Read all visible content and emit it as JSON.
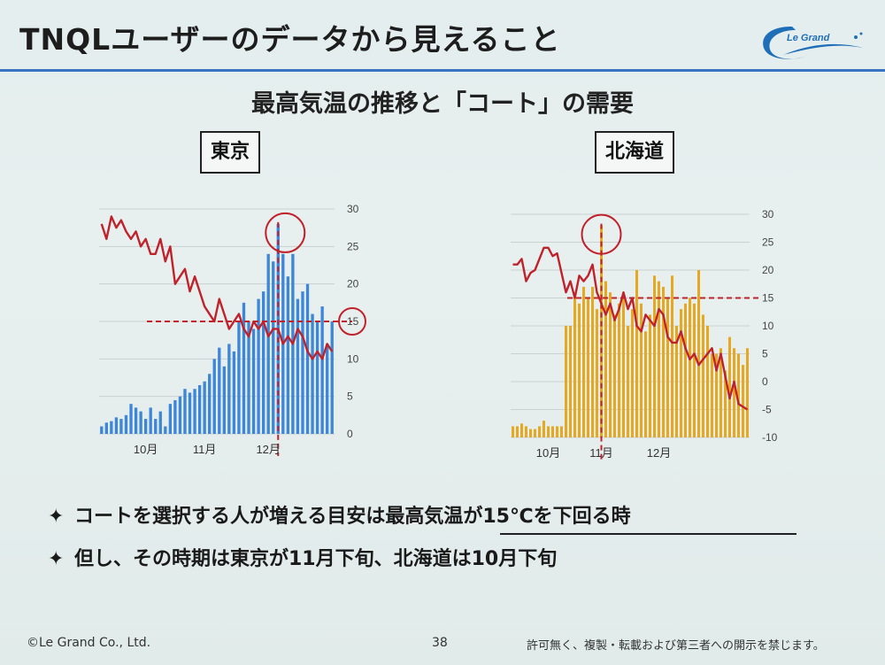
{
  "slide": {
    "title": "TNQLユーザーのデータから見えること",
    "subtitle": "最高気温の推移と「コート」の需要",
    "logo_text": "Le Grand",
    "colors": {
      "accent": "#3c74c4",
      "temp_line": "#c0222c",
      "tokyo_bar": "#3d86d8",
      "hokkaido_bar": "#e6a820"
    },
    "notes": [
      {
        "bullet": "✦",
        "text": "コートを選択する人が増える目安は最高気温が15℃を下回る時"
      },
      {
        "bullet": "✦",
        "text": "但し、その時期は東京が11月下旬、北海道は10月下旬"
      }
    ],
    "footer": {
      "copyright": "©Le Grand Co., Ltd.",
      "page": "38",
      "notice": "許可無く、複製・転載および第三者への開示を禁じます。"
    }
  },
  "chart_data": [
    {
      "type": "bar",
      "title": "東京",
      "xlabel": "",
      "ylabel": "",
      "month_labels": [
        "10月",
        "11月",
        "12月"
      ],
      "month_positions": [
        9,
        21,
        34
      ],
      "axis": {
        "right_ticks": [
          0,
          5,
          10,
          15,
          20,
          25,
          30
        ],
        "ylim": [
          0,
          30
        ]
      },
      "bars": {
        "values": [
          1,
          1.5,
          1.7,
          2.2,
          2,
          2.5,
          4,
          3.5,
          3,
          2,
          3.5,
          2,
          3,
          1,
          4,
          4.5,
          5,
          6,
          5.5,
          6,
          6.5,
          7,
          8,
          10,
          11.5,
          9,
          12,
          11,
          15,
          17.5,
          15,
          14,
          18,
          19,
          24,
          23,
          28,
          24,
          21,
          24,
          18,
          19,
          20,
          16,
          15,
          17,
          12,
          15
        ]
      },
      "series": [
        {
          "name": "最高気温",
          "values": [
            28,
            26,
            29,
            27.5,
            28.5,
            27,
            26,
            27,
            25,
            26,
            24,
            24,
            26,
            23,
            25,
            20,
            21,
            22,
            19,
            21,
            19,
            17,
            16,
            15,
            18,
            16,
            14,
            15,
            16,
            14,
            13,
            15,
            14,
            15,
            13,
            14,
            14,
            12,
            13,
            12,
            14,
            13,
            11,
            10,
            11,
            10,
            12,
            11
          ]
        }
      ],
      "threshold": 15,
      "highlight_index": 36
    },
    {
      "type": "bar",
      "title": "北海道",
      "xlabel": "",
      "ylabel": "",
      "month_labels": [
        "10月",
        "11月",
        "12月"
      ],
      "month_positions": [
        8,
        20,
        33
      ],
      "axis": {
        "right_ticks": [
          30,
          25,
          20,
          15,
          10,
          5,
          0,
          -5,
          -10
        ],
        "ylim": [
          -10,
          30
        ]
      },
      "bars": {
        "values": [
          -8,
          -8,
          -7.5,
          -8,
          -8.5,
          -8.5,
          -8,
          -7,
          -8,
          -8,
          -8,
          -8,
          10,
          10,
          16,
          14,
          17,
          15,
          17,
          13,
          28,
          18,
          16,
          12,
          14,
          15,
          10,
          13,
          20,
          14,
          9,
          12,
          19,
          18,
          17,
          15,
          19,
          10,
          13,
          14,
          15,
          14,
          20,
          12,
          10,
          5,
          5,
          6,
          2,
          8,
          6,
          5,
          3,
          6
        ]
      },
      "series": [
        {
          "name": "最高気温",
          "values": [
            21,
            21,
            22,
            18,
            19.5,
            20,
            22,
            24,
            24,
            22.5,
            23,
            19.5,
            16,
            18,
            15,
            19,
            18,
            19,
            21,
            16,
            14,
            12,
            14,
            11,
            13,
            16,
            13,
            15,
            10,
            9,
            12,
            11,
            10,
            13,
            12,
            8,
            7,
            7,
            9,
            6,
            4,
            5,
            3,
            4,
            5,
            6,
            2,
            5,
            1,
            -3,
            0,
            -4,
            -4.5,
            -5
          ]
        }
      ],
      "threshold": 15,
      "highlight_index": 20
    }
  ]
}
